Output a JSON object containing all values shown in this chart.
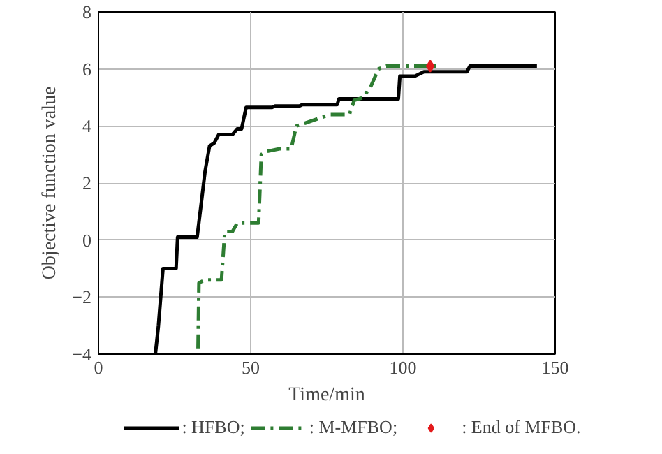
{
  "chart_data": {
    "type": "line",
    "xlabel": "Time/min",
    "ylabel": "Objective function value",
    "xlim": [
      0,
      150
    ],
    "xticks": [
      0,
      50,
      100,
      150
    ],
    "ylim": [
      -4,
      8
    ],
    "yticks": [
      -4,
      -2,
      0,
      2,
      4,
      6,
      8
    ],
    "grid": true,
    "legend": "bottom",
    "series": [
      {
        "name": ": HFBO;",
        "color": "#000000",
        "line_style": "solid",
        "x": [
          18.7,
          19.7,
          21.2,
          25.5,
          26,
          32.4,
          34,
          35,
          36.5,
          38,
          39.5,
          44,
          45.6,
          47,
          48.5,
          57,
          58,
          66,
          67,
          78.4,
          79,
          98.5,
          99,
          104,
          106.9,
          121,
          122,
          144
        ],
        "values": [
          -4,
          -3,
          -1,
          -1,
          0.1,
          0.1,
          1.5,
          2.4,
          3.3,
          3.4,
          3.7,
          3.7,
          3.9,
          3.9,
          4.65,
          4.65,
          4.7,
          4.7,
          4.75,
          4.75,
          4.95,
          4.95,
          5.75,
          5.75,
          5.9,
          5.9,
          6.1,
          6.1
        ]
      },
      {
        "name": ": M-MFBO;",
        "color": "#2e7d32",
        "line_style": "dashed",
        "x": [
          32.7,
          33,
          35,
          40.4,
          41.5,
          44,
          45.6,
          52.6,
          53.5,
          55,
          59.5,
          63.3,
          65,
          67.9,
          76,
          82.4,
          84,
          87,
          89.5,
          92,
          94.5,
          112
        ],
        "values": [
          -3.8,
          -1.5,
          -1.4,
          -1.4,
          0.3,
          0.3,
          0.6,
          0.6,
          3.0,
          3.1,
          3.2,
          3.2,
          4.0,
          4.1,
          4.4,
          4.4,
          4.9,
          5.0,
          5.4,
          6.0,
          6.1,
          6.1
        ]
      },
      {
        "name": ": End of MFBO.",
        "type": "scatter",
        "marker": "diamond",
        "color": "#e31a1c",
        "x": [
          109
        ],
        "values": [
          6.1
        ]
      }
    ]
  }
}
